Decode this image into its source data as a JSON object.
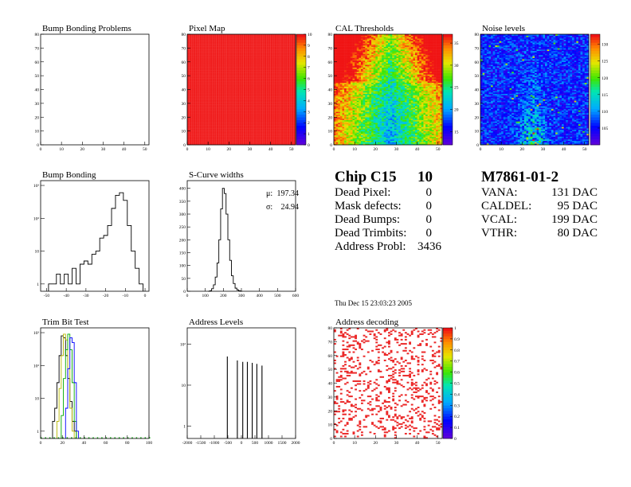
{
  "chart_data": [
    {
      "id": "bb-problems",
      "type": "heatmap",
      "title": "Bump Bonding Problems",
      "xticks": [
        0,
        10,
        20,
        30,
        40,
        50
      ],
      "yticks": [
        0,
        10,
        20,
        30,
        40,
        50,
        60,
        70,
        80
      ],
      "xlim": [
        0,
        52
      ],
      "ylim": [
        0,
        80
      ],
      "cells": "none"
    },
    {
      "id": "pixel-map",
      "type": "heatmap",
      "title": "Pixel Map",
      "xticks": [
        0,
        10,
        20,
        30,
        40,
        50
      ],
      "yticks": [
        0,
        10,
        20,
        30,
        40,
        50,
        60,
        70,
        80
      ],
      "xlim": [
        0,
        52
      ],
      "ylim": [
        0,
        80
      ],
      "zlim": [
        0,
        10
      ],
      "fill_value": 10,
      "zticks": [
        0,
        1,
        2,
        3,
        4,
        5,
        6,
        7,
        8,
        9,
        10
      ]
    },
    {
      "id": "cal-thresholds",
      "type": "heatmap",
      "title": "CAL Thresholds",
      "xticks": [
        0,
        10,
        20,
        30,
        40,
        50
      ],
      "yticks": [
        0,
        10,
        20,
        30,
        40,
        50,
        60,
        70,
        80
      ],
      "xlim": [
        0,
        52
      ],
      "ylim": [
        0,
        80
      ],
      "zlim": [
        12,
        37
      ],
      "zticks": [
        15,
        20,
        25,
        30,
        35
      ]
    },
    {
      "id": "noise-levels",
      "type": "heatmap",
      "title": "Noise levels",
      "xticks": [
        0,
        10,
        20,
        30,
        40,
        50
      ],
      "yticks": [
        0,
        10,
        20,
        30,
        40,
        50,
        60,
        70,
        80
      ],
      "xlim": [
        0,
        52
      ],
      "ylim": [
        0,
        80
      ],
      "zlim": [
        100,
        133
      ],
      "zticks": [
        105,
        110,
        115,
        120,
        125,
        130
      ]
    },
    {
      "id": "bump-bonding",
      "type": "line",
      "title": "Bump Bonding",
      "log_y": true,
      "xticks": [
        -50,
        -40,
        -30,
        -20,
        -10,
        0
      ],
      "ytick_labels": [
        "1",
        "10",
        "10²",
        "10³"
      ],
      "xlim": [
        -53,
        2
      ],
      "ylim": [
        0.6,
        1400
      ],
      "x": [
        -48,
        -46,
        -44,
        -42,
        -40,
        -38,
        -36,
        -34,
        -32,
        -30,
        -28,
        -26,
        -24,
        -22,
        -20,
        -18,
        -16,
        -14,
        -12,
        -10,
        -8,
        -6,
        -4,
        -2
      ],
      "values": [
        1,
        1,
        2,
        1,
        2,
        1,
        3,
        1,
        4,
        5,
        4,
        8,
        10,
        25,
        30,
        60,
        200,
        500,
        600,
        350,
        60,
        10,
        3,
        1
      ]
    },
    {
      "id": "s-curve-widths",
      "type": "line",
      "title": "S-Curve widths",
      "xticks": [
        0,
        100,
        200,
        300,
        400,
        500,
        600
      ],
      "yticks": [
        0,
        50,
        100,
        150,
        200,
        250,
        300,
        350,
        400
      ],
      "xlim": [
        0,
        600
      ],
      "ylim": [
        0,
        430
      ],
      "x": [
        120,
        130,
        140,
        150,
        160,
        170,
        180,
        190,
        200,
        210,
        220,
        230,
        240,
        250,
        260,
        270,
        280,
        290,
        300
      ],
      "values": [
        0,
        2,
        10,
        25,
        55,
        110,
        200,
        320,
        400,
        380,
        300,
        200,
        120,
        60,
        30,
        12,
        5,
        2,
        0
      ],
      "stats": [
        {
          "label": "μ:",
          "value": "197.34"
        },
        {
          "label": "σ:",
          "value": "24.94"
        }
      ]
    },
    {
      "id": "trim-bit-test",
      "type": "line",
      "title": "Trim Bit Test",
      "log_y": true,
      "xticks": [
        0,
        20,
        40,
        60,
        80,
        100
      ],
      "ytick_labels": [
        "1",
        "10",
        "10²",
        "10³"
      ],
      "xlim": [
        0,
        100
      ],
      "ylim": [
        0.6,
        1400
      ],
      "series": [
        {
          "color": "#000000",
          "x": [
            12,
            14,
            16,
            18,
            20,
            22,
            24,
            26,
            28,
            30,
            32
          ],
          "values": [
            2,
            5,
            30,
            200,
            800,
            700,
            200,
            40,
            8,
            2,
            1
          ]
        },
        {
          "color": "#b8b800",
          "x": [
            16,
            18,
            20,
            22,
            24,
            26,
            28,
            30
          ],
          "values": [
            2,
            20,
            200,
            900,
            600,
            80,
            5,
            1
          ]
        },
        {
          "color": "#00aa00",
          "x": [
            20,
            22,
            24,
            26,
            28,
            30,
            32
          ],
          "values": [
            3,
            40,
            300,
            900,
            300,
            30,
            2
          ]
        },
        {
          "color": "#0000ff",
          "x": [
            24,
            26,
            28,
            30,
            32,
            34
          ],
          "values": [
            5,
            80,
            700,
            500,
            30,
            1
          ]
        }
      ]
    },
    {
      "id": "address-levels",
      "type": "line",
      "title": "Address Levels",
      "log_y": true,
      "xticks": [
        -2000,
        -1500,
        -1000,
        -500,
        0,
        500,
        1000,
        1500,
        2000
      ],
      "ytick_labels": [
        "1",
        "10",
        "10²"
      ],
      "xlim": [
        -2000,
        2000
      ],
      "ylim": [
        0.5,
        250
      ],
      "peaks": [
        {
          "x": -520,
          "v": 50
        },
        {
          "x": -150,
          "v": 40
        },
        {
          "x": 50,
          "v": 37
        },
        {
          "x": 220,
          "v": 37
        },
        {
          "x": 400,
          "v": 35
        },
        {
          "x": 570,
          "v": 33
        },
        {
          "x": 760,
          "v": 30
        }
      ]
    },
    {
      "id": "address-decoding",
      "type": "heatmap",
      "title": "Address decoding",
      "xticks": [
        0,
        10,
        20,
        30,
        40,
        50
      ],
      "yticks": [
        0,
        10,
        20,
        30,
        40,
        50,
        60,
        70,
        80
      ],
      "xlim": [
        0,
        52
      ],
      "ylim": [
        0,
        80
      ],
      "zlim": [
        0,
        1
      ],
      "zticks": [
        "0",
        "0.1",
        "0.2",
        "0.3",
        "0.4",
        "0.5",
        "0.6",
        "0.7",
        "0.8",
        "0.9",
        "1"
      ],
      "fill_fraction": 0.18
    }
  ],
  "chip_summary": {
    "title": "Chip C15",
    "number": "10",
    "rows": [
      {
        "label": "Dead Pixel:",
        "value": "0"
      },
      {
        "label": "Mask defects:",
        "value": "0"
      },
      {
        "label": "Dead Bumps:",
        "value": "0"
      },
      {
        "label": "Dead Trimbits:",
        "value": "0"
      },
      {
        "label": "Address Probl:",
        "value": "3436"
      }
    ]
  },
  "module_summary": {
    "title": "M7861-01-2",
    "rows": [
      {
        "label": "VANA:",
        "value": "131 DAC"
      },
      {
        "label": "CALDEL:",
        "value": "95 DAC"
      },
      {
        "label": "VCAL:",
        "value": "199 DAC"
      },
      {
        "label": "VTHR:",
        "value": "80 DAC"
      }
    ]
  },
  "timestamp": "Thu Dec 15 23:03:23 2005"
}
